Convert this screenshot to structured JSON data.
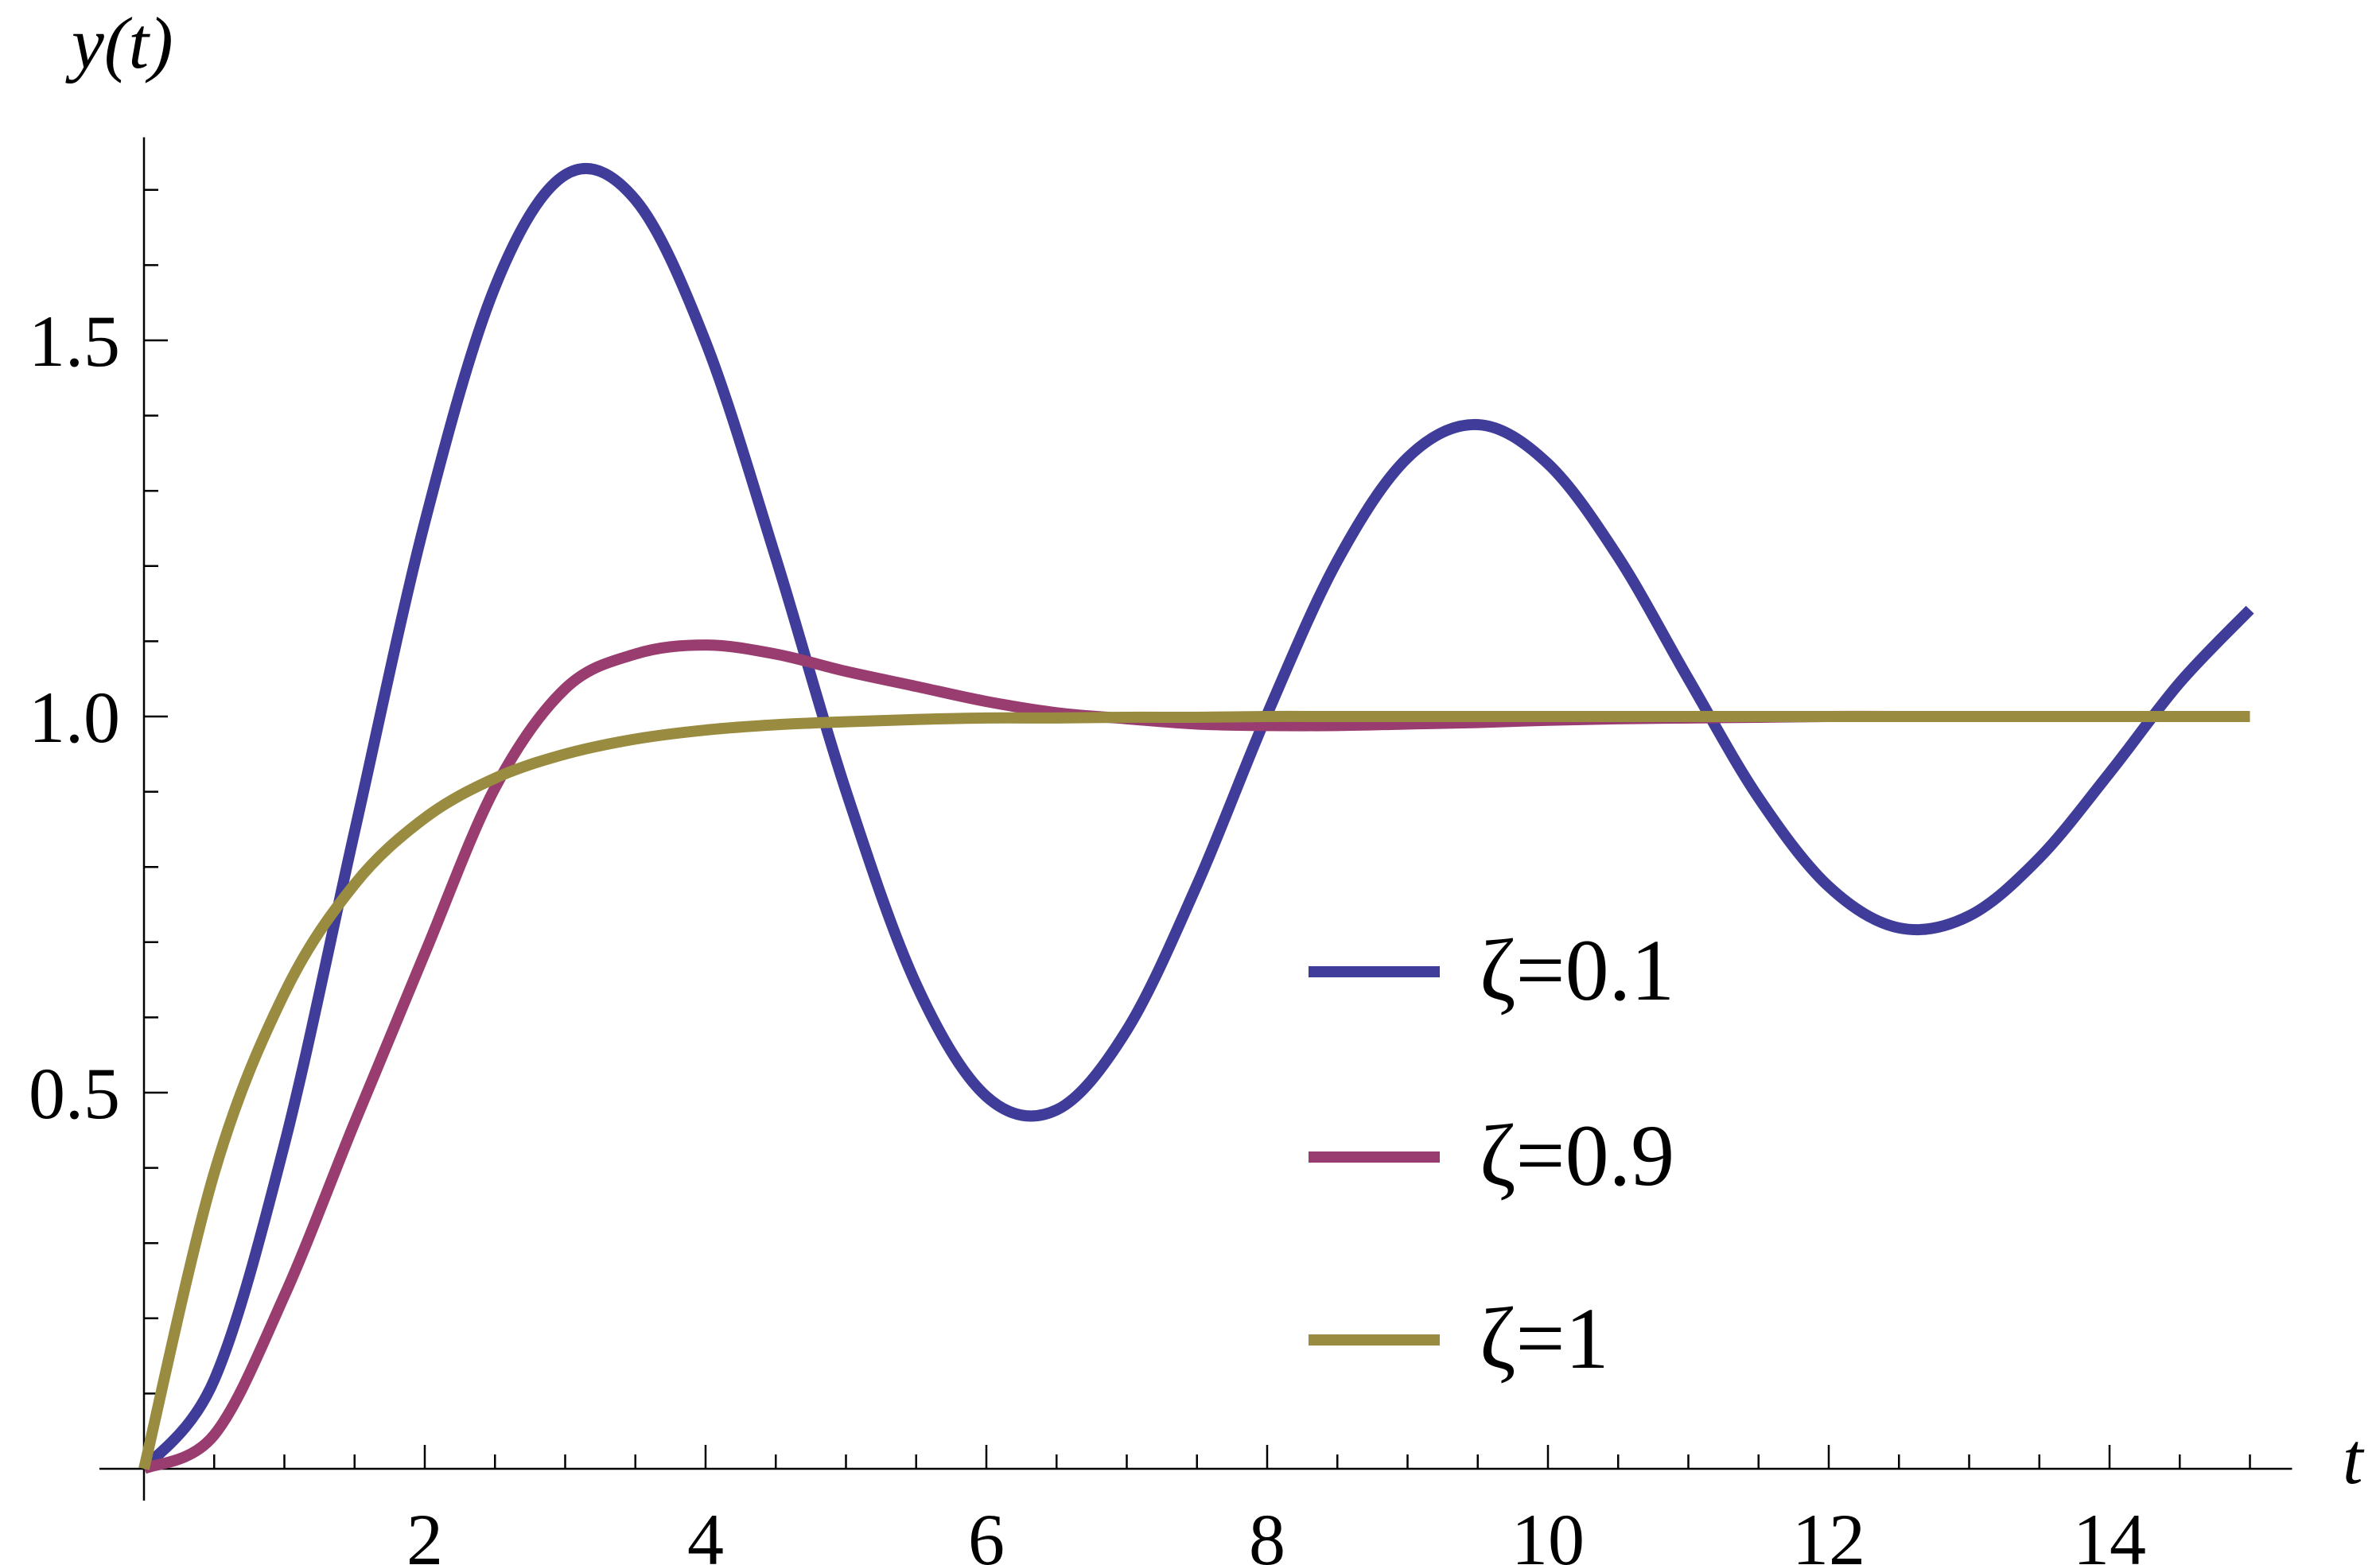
{
  "chart_data": {
    "type": "line",
    "xlabel": "t",
    "ylabel": "y(t)",
    "xlim": [
      0,
      15.3
    ],
    "ylim": [
      0,
      1.77
    ],
    "x_ticks": [
      "2",
      "4",
      "6",
      "8",
      "10",
      "12",
      "14"
    ],
    "y_ticks": [
      "0.5",
      "1.0",
      "1.5"
    ],
    "grid": false,
    "legend_position": "bottom-right",
    "x": [
      0,
      0.5,
      1,
      1.5,
      2,
      2.5,
      3,
      3.5,
      4,
      4.5,
      5,
      5.5,
      6,
      6.5,
      7,
      7.5,
      8,
      8.5,
      9,
      9.5,
      10,
      10.5,
      11,
      11.5,
      12,
      12.5,
      13,
      13.5,
      14,
      14.5,
      15
    ],
    "series": [
      {
        "name": "ζ=0.1",
        "color": "#3f3d99",
        "values": [
          0,
          0.118,
          0.431,
          0.847,
          1.258,
          1.571,
          1.72,
          1.687,
          1.498,
          1.211,
          0.901,
          0.644,
          0.495,
          0.477,
          0.583,
          0.776,
          1.003,
          1.207,
          1.344,
          1.388,
          1.336,
          1.212,
          1.05,
          0.892,
          0.774,
          0.719,
          0.735,
          0.812,
          0.925,
          1.045,
          1.142
        ]
      },
      {
        "name": "ζ=0.9",
        "color": "#993c6f",
        "values": [
          0,
          0.045,
          0.23,
          0.46,
          0.685,
          0.905,
          1.037,
          1.083,
          1.095,
          1.083,
          1.06,
          1.04,
          1.02,
          1.005,
          0.997,
          0.99,
          0.988,
          0.988,
          0.99,
          0.992,
          0.995,
          0.997,
          0.998,
          0.999,
          1.0,
          1.0,
          1.0,
          1.0,
          1.0,
          1.0,
          1.0
        ]
      },
      {
        "name": "ζ=1",
        "color": "#998b3f",
        "values": [
          0,
          0.393,
          0.632,
          0.777,
          0.865,
          0.918,
          0.95,
          0.97,
          0.982,
          0.989,
          0.993,
          0.996,
          0.998,
          0.998,
          0.999,
          0.999,
          1.0,
          1.0,
          1.0,
          1.0,
          1.0,
          1.0,
          1.0,
          1.0,
          1.0,
          1.0,
          1.0,
          1.0,
          1.0,
          1.0,
          1.0
        ]
      }
    ]
  }
}
